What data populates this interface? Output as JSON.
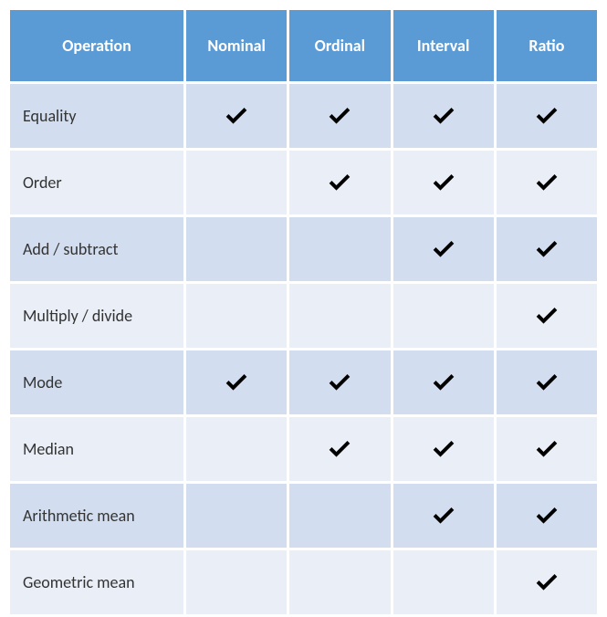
{
  "table": {
    "columns": [
      "Operation",
      "Nominal",
      "Ordinal",
      "Interval",
      "Ratio"
    ],
    "operations": [
      "Equality",
      "Order",
      "Add / subtract",
      "Multiply / divide",
      "Mode",
      "Median",
      "Arithmetic mean",
      "Geometric mean"
    ],
    "matrix": [
      [
        true,
        true,
        true,
        true
      ],
      [
        false,
        true,
        true,
        true
      ],
      [
        false,
        false,
        true,
        true
      ],
      [
        false,
        false,
        false,
        true
      ],
      [
        true,
        true,
        true,
        true
      ],
      [
        false,
        true,
        true,
        true
      ],
      [
        false,
        false,
        true,
        true
      ],
      [
        false,
        false,
        false,
        true
      ]
    ],
    "header_bg": "#5b9bd5",
    "header_fg": "#ffffff",
    "band_colors": [
      "#d2deef",
      "#eaeff7"
    ],
    "check_color": "#000000",
    "font_family": "Calibri",
    "header_fontsize": 18,
    "cell_fontsize": 18
  }
}
